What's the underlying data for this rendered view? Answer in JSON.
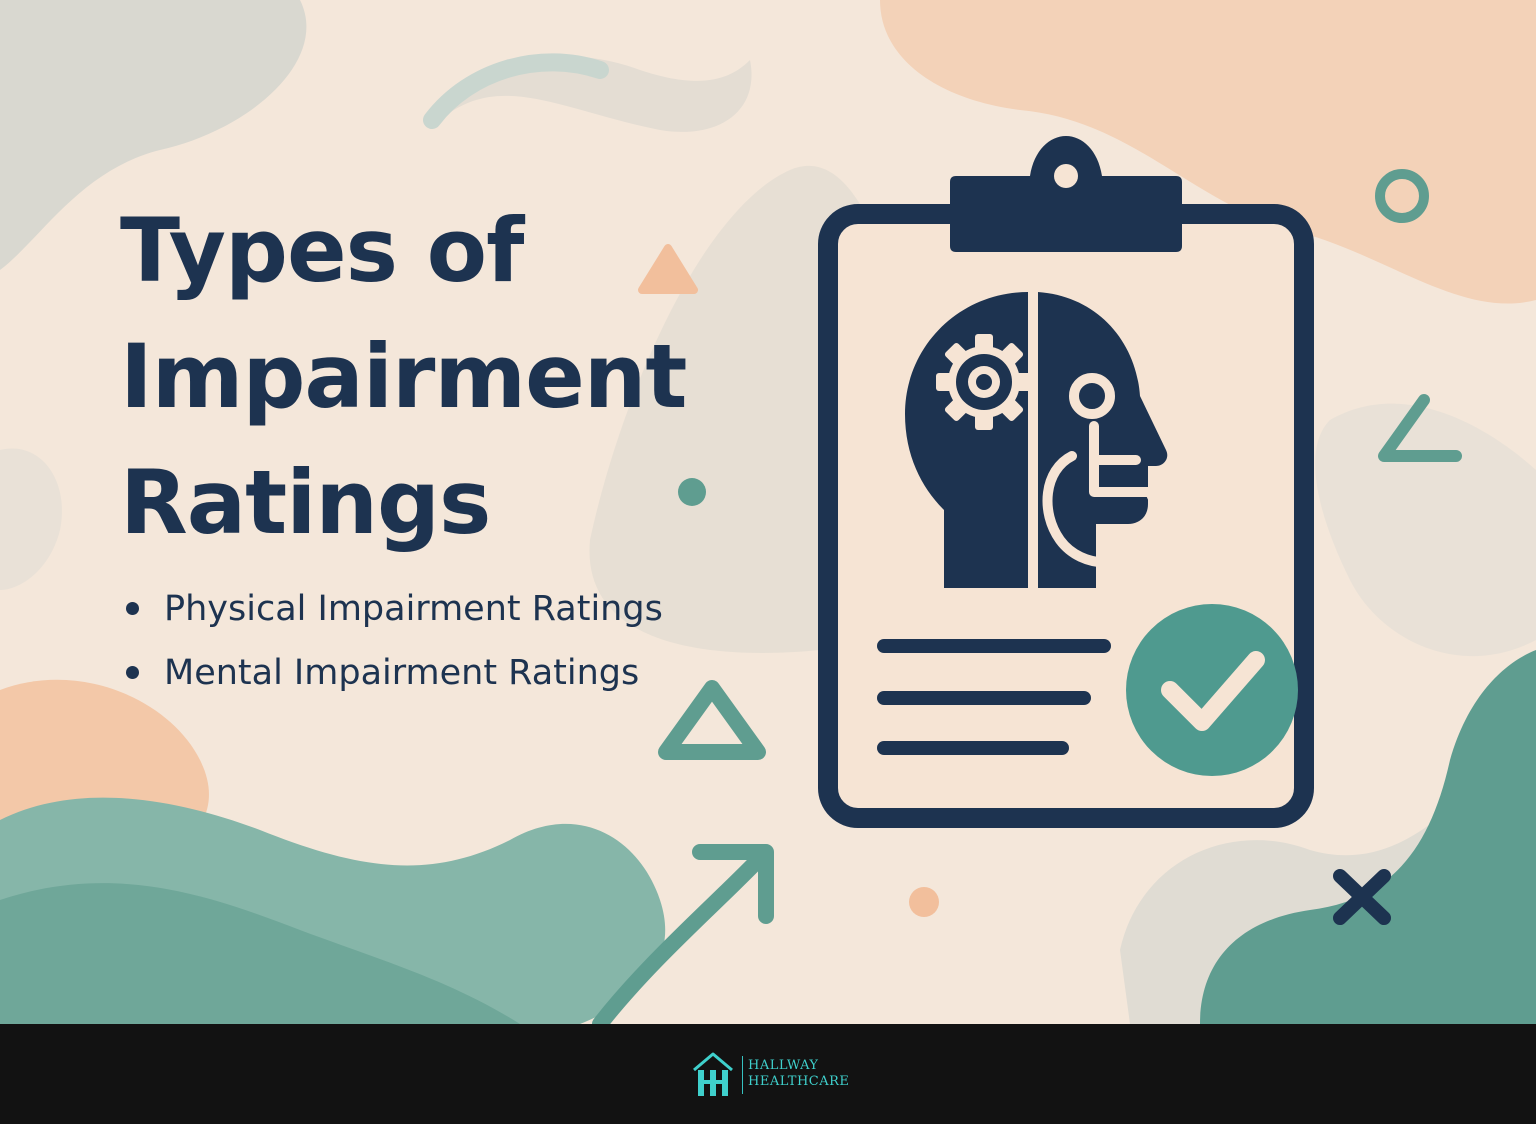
{
  "colors": {
    "background": "#f4e7da",
    "navy": "#1d3350",
    "teal": "#4f9a8f",
    "peach": "#f3c8a8",
    "footer": "#121212",
    "logo": "#3fd0cc"
  },
  "hero": {
    "title_lines": [
      "Types of",
      "Impairment",
      "Ratings"
    ]
  },
  "bullets": [
    "Physical Impairment Ratings",
    "Mental Impairment Ratings"
  ],
  "illustration": {
    "icons": [
      "clipboard-icon",
      "head-icon",
      "gear-icon",
      "wheelchair-icon",
      "checkmark-icon"
    ]
  },
  "footer": {
    "brand_line1": "HALLWAY",
    "brand_line2": "HEALTHCARE"
  }
}
